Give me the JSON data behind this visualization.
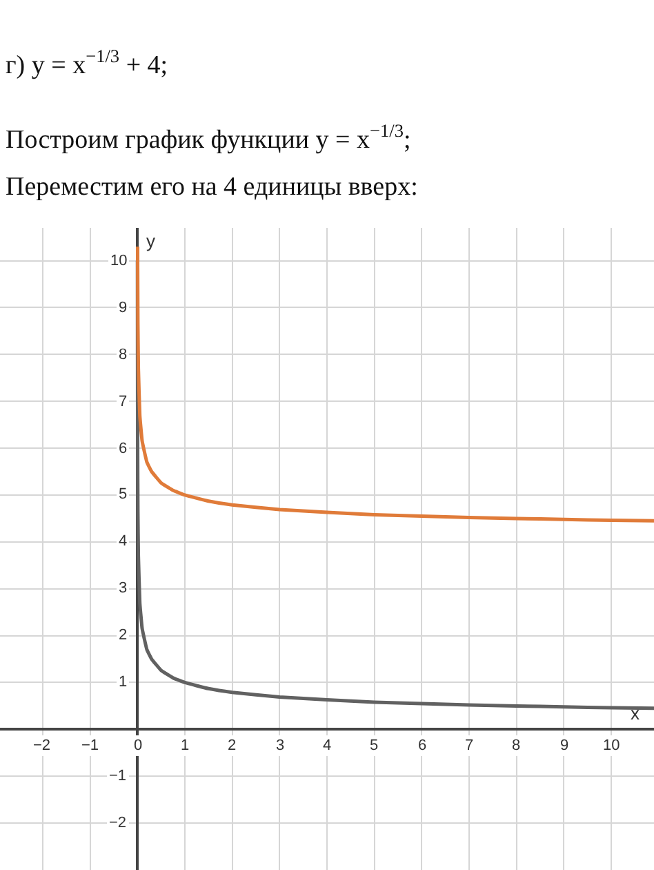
{
  "chart_data": {
    "type": "line",
    "title": "г) y = x$^{−1/3}$ + 4;",
    "subtitle": "Построим график функции y = x$^{−1/3}$;",
    "annotations": [
      "Переместим его на 4 единицы вверх:"
    ],
    "xlabel": "x",
    "ylabel": "y",
    "series": [
      {
        "color": "#616161",
        "x": [
          0.001,
          0.002,
          0.005,
          0.01,
          0.02,
          0.05,
          0.1,
          0.2,
          0.3,
          0.5,
          0.75,
          1,
          1.5,
          2,
          3,
          4,
          5,
          6,
          7,
          8,
          9,
          10,
          10.9
        ],
        "values": [
          10,
          7.9,
          5.85,
          4.65,
          3.7,
          2.7,
          2.15,
          1.7,
          1.5,
          1.26,
          1.1,
          1,
          0.87,
          0.79,
          0.69,
          0.63,
          0.58,
          0.55,
          0.52,
          0.5,
          0.48,
          0.46,
          0.45
        ]
      },
      {
        "color": "#e07b39",
        "x": [
          0.004,
          0.005,
          0.01,
          0.02,
          0.05,
          0.1,
          0.2,
          0.3,
          0.5,
          0.75,
          1,
          1.5,
          2,
          3,
          4,
          5,
          6,
          7,
          8,
          9,
          10,
          10.9
        ],
        "values": [
          10.3,
          9.85,
          8.65,
          7.7,
          6.7,
          6.15,
          5.7,
          5.5,
          5.26,
          5.1,
          5,
          4.87,
          4.79,
          4.69,
          4.63,
          4.58,
          4.55,
          4.52,
          4.5,
          4.48,
          4.46,
          4.45
        ]
      }
    ],
    "xlim": [
      -2.9,
      10.9
    ],
    "ylim": [
      -3,
      10.7
    ],
    "xticks": [
      -2,
      -1,
      0,
      1,
      2,
      3,
      4,
      5,
      6,
      7,
      8,
      9,
      10
    ],
    "yticks": [
      -2,
      -1,
      1,
      2,
      3,
      4,
      5,
      6,
      7,
      8,
      9,
      10
    ],
    "grid": true,
    "marker": "none",
    "line_style": "solid"
  }
}
